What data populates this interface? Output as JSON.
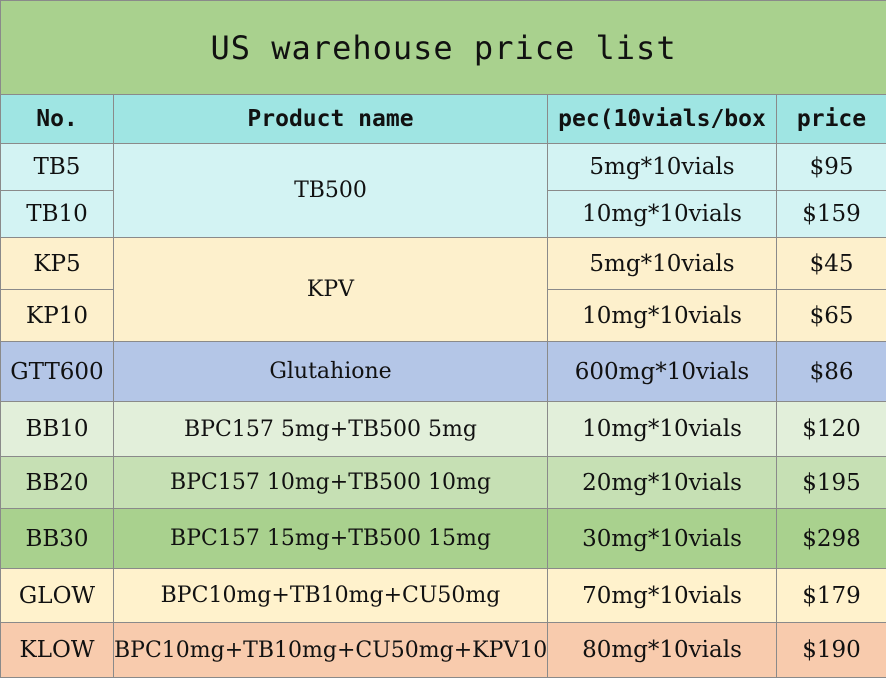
{
  "title": "US warehouse price list",
  "headers": {
    "no": "No.",
    "product": "Product name",
    "spec": "pec(10vials/box",
    "price": "price"
  },
  "rows": [
    {
      "no": "TB5",
      "product": "TB500",
      "spec": "5mg*10vials",
      "price": "$95"
    },
    {
      "no": "TB10",
      "product": "TB500",
      "spec": "10mg*10vials",
      "price": "$159"
    },
    {
      "no": "KP5",
      "product": "KPV",
      "spec": "5mg*10vials",
      "price": "$45"
    },
    {
      "no": "KP10",
      "product": "KPV",
      "spec": "10mg*10vials",
      "price": "$65"
    },
    {
      "no": "GTT600",
      "product": "Glutahione",
      "spec": "600mg*10vials",
      "price": "$86"
    },
    {
      "no": "BB10",
      "product": "BPC157 5mg+TB500 5mg",
      "spec": "10mg*10vials",
      "price": "$120"
    },
    {
      "no": "BB20",
      "product": "BPC157 10mg+TB500 10mg",
      "spec": "20mg*10vials",
      "price": "$195"
    },
    {
      "no": "BB30",
      "product": "BPC157 15mg+TB500 15mg",
      "spec": "30mg*10vials",
      "price": "$298"
    },
    {
      "no": "GLOW",
      "product": "BPC10mg+TB10mg+CU50mg",
      "spec": "70mg*10vials",
      "price": "$179"
    },
    {
      "no": "KLOW",
      "product": "BPC10mg+TB10mg+CU50mg+KPV10mg",
      "spec": "80mg*10vials",
      "price": "$190"
    }
  ],
  "colors": {
    "title_bg": "#a9d18e",
    "header_bg": "#9fe5e3",
    "tb_bg": "#d3f3f3",
    "kp_bg": "#fdf0cc",
    "gtt_bg": "#b4c6e7",
    "bb10_bg": "#e2efda",
    "bb20_bg": "#c6e0b4",
    "bb30_bg": "#a9d18e",
    "glow_bg": "#fff2cc",
    "klow_bg": "#f8cbad"
  }
}
